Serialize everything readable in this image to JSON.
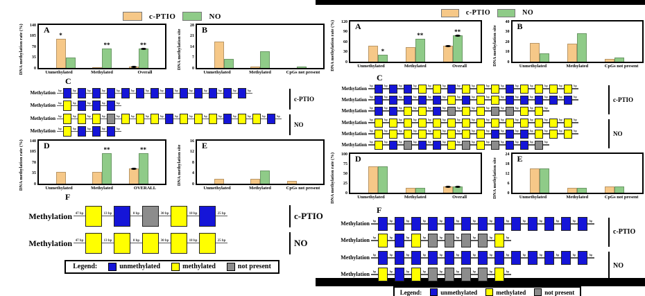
{
  "colors": {
    "cptio": "#F6C888",
    "no": "#8FCB88",
    "unmethylated": "#1515D8",
    "methylated": "#FFFF00",
    "not_present": "#8C8C8C"
  },
  "chart_data": [
    {
      "id": "left_A",
      "figure": "left",
      "letter": "A",
      "type": "bar",
      "ylabel": "DNA methylation rate (%)",
      "ylim": [
        0,
        140
      ],
      "yticks": [
        0,
        35,
        70,
        105,
        140
      ],
      "categories": [
        "Unmethylated",
        "Methylated",
        "Overall"
      ],
      "series": [
        {
          "name": "c-PTIO",
          "color_key": "cptio",
          "values": [
            95,
            3,
            5
          ]
        },
        {
          "name": "NO",
          "color_key": "no",
          "values": [
            33,
            63,
            64
          ]
        }
      ],
      "annotations": [
        {
          "category": 0,
          "series": 0,
          "text": "*"
        },
        {
          "category": 1,
          "series": 1,
          "text": "**"
        },
        {
          "category": 2,
          "series": 1,
          "text": "**"
        }
      ],
      "markers": [
        {
          "category": 2,
          "series": 0
        },
        {
          "category": 2,
          "series": 1
        }
      ]
    },
    {
      "id": "left_B",
      "figure": "left",
      "letter": "B",
      "type": "bar",
      "ylabel": "DNA methylation site",
      "ylim": [
        0,
        28
      ],
      "yticks": [
        0,
        7,
        14,
        21,
        28
      ],
      "categories": [
        "Unmethylated",
        "Methylated",
        "CpGs not present"
      ],
      "series": [
        {
          "name": "c-PTIO",
          "color_key": "cptio",
          "values": [
            17,
            1,
            0
          ]
        },
        {
          "name": "NO",
          "color_key": "no",
          "values": [
            6,
            11,
            1
          ]
        }
      ],
      "annotations": [],
      "markers": []
    },
    {
      "id": "left_D",
      "figure": "left",
      "letter": "D",
      "type": "bar",
      "ylabel": "DNA methylation rate (%)",
      "ylim": [
        0,
        140
      ],
      "yticks": [
        0,
        35,
        70,
        105,
        140
      ],
      "categories": [
        "Unmethylated",
        "Methylated",
        "OVERALL"
      ],
      "series": [
        {
          "name": "c-PTIO",
          "color_key": "cptio",
          "values": [
            40,
            40,
            50
          ]
        },
        {
          "name": "NO",
          "color_key": "no",
          "values": [
            0,
            100,
            100
          ]
        }
      ],
      "annotations": [
        {
          "category": 1,
          "series": 1,
          "text": "**"
        },
        {
          "category": 2,
          "series": 1,
          "text": "**"
        }
      ],
      "markers": [
        {
          "category": 2,
          "series": 0
        }
      ]
    },
    {
      "id": "left_E",
      "figure": "left",
      "letter": "E",
      "type": "bar",
      "ylabel": "DNA methylation site",
      "ylim": [
        0,
        16
      ],
      "yticks": [
        0,
        4,
        8,
        12,
        16
      ],
      "categories": [
        "Unmethylated",
        "Methylated",
        "CpGs not present"
      ],
      "series": [
        {
          "name": "c-PTIO",
          "color_key": "cptio",
          "values": [
            2,
            2,
            1
          ]
        },
        {
          "name": "NO",
          "color_key": "no",
          "values": [
            0,
            5,
            0
          ]
        }
      ],
      "annotations": [],
      "markers": []
    },
    {
      "id": "right_A",
      "figure": "right",
      "letter": "A",
      "type": "bar",
      "ylabel": "DNA methylation rate (%)",
      "ylim": [
        0,
        120
      ],
      "yticks": [
        0,
        30,
        60,
        90,
        120
      ],
      "categories": [
        "Unmethylated",
        "Methylated",
        "Overall"
      ],
      "series": [
        {
          "name": "c-PTIO",
          "color_key": "cptio",
          "values": [
            47,
            44,
            48
          ]
        },
        {
          "name": "NO",
          "color_key": "no",
          "values": [
            20,
            68,
            78
          ]
        }
      ],
      "annotations": [
        {
          "category": 0,
          "series": 1,
          "text": "*"
        },
        {
          "category": 1,
          "series": 1,
          "text": "**"
        },
        {
          "category": 2,
          "series": 1,
          "text": "**"
        }
      ],
      "markers": [
        {
          "category": 2,
          "series": 0
        },
        {
          "category": 2,
          "series": 1
        }
      ]
    },
    {
      "id": "right_B",
      "figure": "right",
      "letter": "B",
      "type": "bar",
      "ylabel": "DNA methylation site",
      "ylim": [
        0,
        40
      ],
      "yticks": [
        0,
        10,
        20,
        30,
        40
      ],
      "categories": [
        "Unmethylated",
        "Methylated",
        "CpGs not present"
      ],
      "series": [
        {
          "name": "c-PTIO",
          "color_key": "cptio",
          "values": [
            19,
            18,
            3
          ]
        },
        {
          "name": "NO",
          "color_key": "no",
          "values": [
            8,
            28,
            4
          ]
        }
      ],
      "annotations": [],
      "markers": []
    },
    {
      "id": "right_D",
      "figure": "right",
      "letter": "D",
      "type": "bar",
      "ylabel": "DNA methylation rate (%)",
      "ylim": [
        0,
        100
      ],
      "yticks": [
        0,
        25,
        50,
        75,
        100
      ],
      "categories": [
        "Unmethylated",
        "Methylated",
        "Overall"
      ],
      "series": [
        {
          "name": "c-PTIO",
          "color_key": "cptio",
          "values": [
            68,
            13,
            17
          ]
        },
        {
          "name": "NO",
          "color_key": "no",
          "values": [
            68,
            13,
            16
          ]
        }
      ],
      "annotations": [],
      "markers": [
        {
          "category": 2,
          "series": 0
        },
        {
          "category": 2,
          "series": 1
        }
      ]
    },
    {
      "id": "right_E",
      "figure": "right",
      "letter": "E",
      "type": "bar",
      "ylabel": "DNA methylation site",
      "ylim": [
        0,
        24
      ],
      "yticks": [
        0,
        6,
        12,
        18,
        24
      ],
      "categories": [
        "Unmethylated",
        "Methylated",
        "CpGs not present"
      ],
      "series": [
        {
          "name": "c-PTIO",
          "color_key": "cptio",
          "values": [
            15,
            3,
            4
          ]
        },
        {
          "name": "NO",
          "color_key": "no",
          "values": [
            15,
            3,
            4
          ]
        }
      ],
      "annotations": [],
      "markers": []
    }
  ],
  "left_figure": {
    "legend_top": [
      "c-PTIO",
      "NO"
    ],
    "panel_c": {
      "letter": "C",
      "row_label": "Methylation",
      "connector_label": "bp",
      "groups": [
        {
          "name": "c-PTIO",
          "rows": [
            [
              "B",
              "B",
              "B",
              "B",
              "B",
              "B",
              "B",
              "B",
              "B",
              "B",
              "B",
              "B",
              "B"
            ],
            [
              "Y",
              "B",
              "B",
              "B"
            ]
          ]
        },
        {
          "name": "NO",
          "rows": [
            [
              "Y",
              "Y",
              "Y",
              "G",
              "Y",
              "Y",
              "Y",
              "B",
              "Y",
              "Y",
              "Y",
              "B",
              "Y",
              "Y",
              "B"
            ],
            [
              "Y",
              "B",
              "B",
              "B"
            ]
          ]
        }
      ]
    },
    "panel_f": {
      "letter": "F",
      "row_label": "Methylation",
      "segment_labels": [
        "47 bp",
        "13 bp",
        "8 bp",
        "30 bp",
        "18 bp",
        "25 bp"
      ],
      "groups": [
        {
          "name": "c-PTIO",
          "rows": [
            [
              "Y",
              "B",
              "G",
              "Y",
              "B"
            ]
          ]
        },
        {
          "name": "NO",
          "rows": [
            [
              "Y",
              "Y",
              "Y",
              "Y",
              "Y"
            ]
          ]
        }
      ]
    },
    "legend_box": {
      "title": "Legend:",
      "items": [
        {
          "key": "B",
          "label": "unmethylated"
        },
        {
          "key": "Y",
          "label": "methylated"
        },
        {
          "key": "G",
          "label": "not present"
        }
      ]
    }
  },
  "right_figure": {
    "legend_top": [
      "c-PTIO",
      "NO"
    ],
    "panel_c": {
      "letter": "C",
      "row_label": "Methylation",
      "connector_label": "bp",
      "groups": [
        {
          "name": "c-PTIO",
          "rows": [
            [
              "B",
              "B",
              "B",
              "Y",
              "Y",
              "B",
              "Y",
              "Y",
              "Y",
              "B",
              "Y",
              "Y",
              "Y",
              "Y"
            ],
            [
              "B",
              "B",
              "B",
              "B",
              "B",
              "Y",
              "B",
              "Y",
              "Y",
              "B",
              "B",
              "B",
              "B",
              "B"
            ],
            [
              "B",
              "B",
              "Y",
              "Y",
              "B",
              "G",
              "Y",
              "Y",
              "G",
              "G",
              "Y",
              "Y"
            ]
          ]
        },
        {
          "name": "NO",
          "rows": [
            [
              "Y",
              "Y",
              "Y",
              "Y",
              "Y",
              "Y",
              "Y",
              "Y",
              "Y",
              "Y",
              "Y",
              "Y",
              "Y",
              "Y"
            ],
            [
              "Y",
              "Y",
              "Y",
              "Y",
              "Y",
              "Y",
              "Y",
              "Y",
              "B",
              "B",
              "B",
              "Y",
              "Y",
              "Y"
            ],
            [
              "Y",
              "B",
              "G",
              "B",
              "B",
              "Y",
              "G",
              "Y",
              "G",
              "B",
              "B",
              "G"
            ]
          ]
        }
      ]
    },
    "panel_f": {
      "letter": "F",
      "row_label": "Methylation",
      "connector_label": "bp",
      "groups": [
        {
          "name": "c-PTIO",
          "rows": [
            [
              "B",
              "B",
              "B",
              "B",
              "B",
              "B",
              "B",
              "B",
              "B",
              "B",
              "B",
              "B",
              "B"
            ],
            [
              "Y",
              "B",
              "Y",
              "G",
              "G",
              "G",
              "G",
              "Y"
            ]
          ]
        },
        {
          "name": "NO",
          "rows": [
            [
              "B",
              "B",
              "B",
              "B",
              "B",
              "B",
              "B",
              "B",
              "B",
              "B",
              "B",
              "B",
              "B"
            ],
            [
              "Y",
              "B",
              "Y",
              "G",
              "G",
              "G",
              "G",
              "Y"
            ]
          ]
        }
      ]
    },
    "legend_box": {
      "title": "Legend:",
      "items": [
        {
          "key": "B",
          "label": "unmethylated"
        },
        {
          "key": "Y",
          "label": "methylated"
        },
        {
          "key": "G",
          "label": "not present"
        }
      ]
    }
  }
}
